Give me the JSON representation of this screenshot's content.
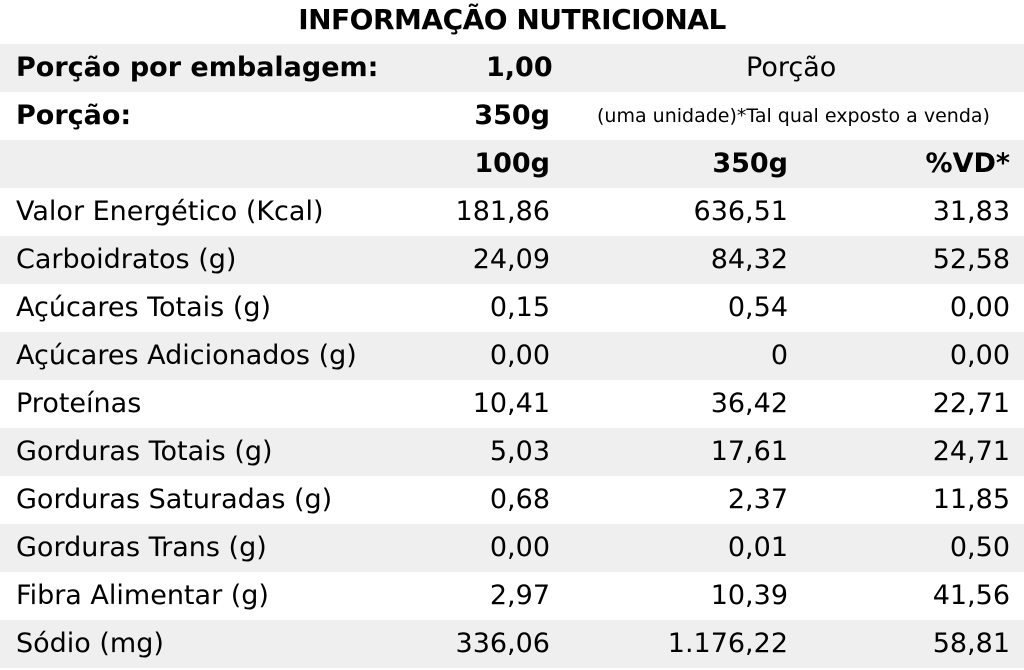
{
  "title": "INFORMAÇÃO NUTRICIONAL",
  "header": {
    "servings_label": "Porção por embalagem:",
    "servings_value": "1,00",
    "portion_heading": "Porção",
    "portion_label": "Porção:",
    "portion_value": "350g",
    "portion_note": "(uma unidade)*Tal qual exposto a venda)",
    "col_100g": "100g",
    "col_portion": "350g",
    "col_vd": "%VD*"
  },
  "rows": [
    {
      "name": "Valor Energético (Kcal)",
      "per100": "181,86",
      "perPortion": "636,51",
      "vd": "31,83"
    },
    {
      "name": "Carboidratos (g)",
      "per100": "24,09",
      "perPortion": "84,32",
      "vd": "52,58"
    },
    {
      "name": "Açúcares Totais (g)",
      "per100": "0,15",
      "perPortion": "0,54",
      "vd": "0,00"
    },
    {
      "name": "Açúcares Adicionados (g)",
      "per100": "0,00",
      "perPortion": "0",
      "vd": "0,00"
    },
    {
      "name": "Proteínas",
      "per100": "10,41",
      "perPortion": "36,42",
      "vd": "22,71"
    },
    {
      "name": "Gorduras Totais (g)",
      "per100": "5,03",
      "perPortion": "17,61",
      "vd": "24,71"
    },
    {
      "name": "Gorduras Saturadas (g)",
      "per100": "0,68",
      "perPortion": "2,37",
      "vd": "11,85"
    },
    {
      "name": "Gorduras Trans (g)",
      "per100": "0,00",
      "perPortion": "0,01",
      "vd": "0,50"
    },
    {
      "name": "Fibra Alimentar (g)",
      "per100": "2,97",
      "perPortion": "10,39",
      "vd": "41,56"
    },
    {
      "name": "Sódio (mg)",
      "per100": "336,06",
      "perPortion": "1.176,22",
      "vd": "58,81"
    }
  ]
}
